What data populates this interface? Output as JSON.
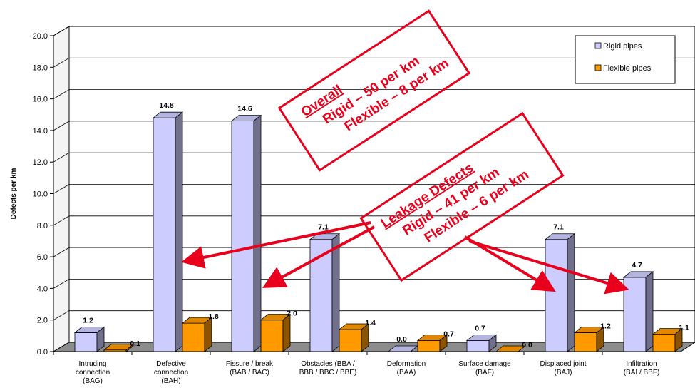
{
  "chart_data": {
    "type": "bar",
    "title": "",
    "xlabel": "",
    "ylabel": "Defects per km",
    "ylim": [
      0,
      20
    ],
    "yticks": [
      "0.0",
      "2.0",
      "4.0",
      "6.0",
      "8.0",
      "10.0",
      "12.0",
      "14.0",
      "16.0",
      "18.0",
      "20.0"
    ],
    "grid": true,
    "legend_position": "top-right",
    "categories": [
      [
        "Intruding",
        "connection",
        "(BAG)"
      ],
      [
        "Defective",
        "connection",
        "(BAH)"
      ],
      [
        "Fissure / break",
        "(BAB / BAC)"
      ],
      [
        "Obstacles (BBA /",
        "BBB / BBC / BBE)"
      ],
      [
        "Deformation",
        "(BAA)"
      ],
      [
        "Surface damage",
        "(BAF)"
      ],
      [
        "Displaced joint",
        "(BAJ)"
      ],
      [
        "Infiltration",
        "(BAI / BBF)"
      ]
    ],
    "series": [
      {
        "name": "Rigid pipes",
        "color": "#ccccff",
        "values": [
          1.2,
          14.8,
          14.6,
          7.1,
          0.0,
          0.7,
          7.1,
          4.7
        ],
        "labels": [
          "1.2",
          "14.8",
          "14.6",
          "7.1",
          "0.0",
          "0.7",
          "7.1",
          "4.7"
        ]
      },
      {
        "name": "Flexible pipes",
        "color": "#ff9900",
        "values": [
          0.1,
          1.8,
          2.0,
          1.4,
          0.7,
          0.0,
          1.2,
          1.1
        ],
        "labels": [
          "0.1",
          "1.8",
          "2.0",
          "1.4",
          "0.7",
          "0.0",
          "1.2",
          "1.1"
        ]
      }
    ],
    "annotations": [
      {
        "lines": [
          "Overall",
          "Rigid – 50 per km",
          "Flexible – 8 per km"
        ],
        "underline_first": true,
        "color": "#e8001c"
      },
      {
        "lines": [
          "Leakage Defects",
          "Rigid – 41 per km",
          "Flexible – 6 per km"
        ],
        "underline_first": true,
        "color": "#e8001c"
      }
    ]
  }
}
